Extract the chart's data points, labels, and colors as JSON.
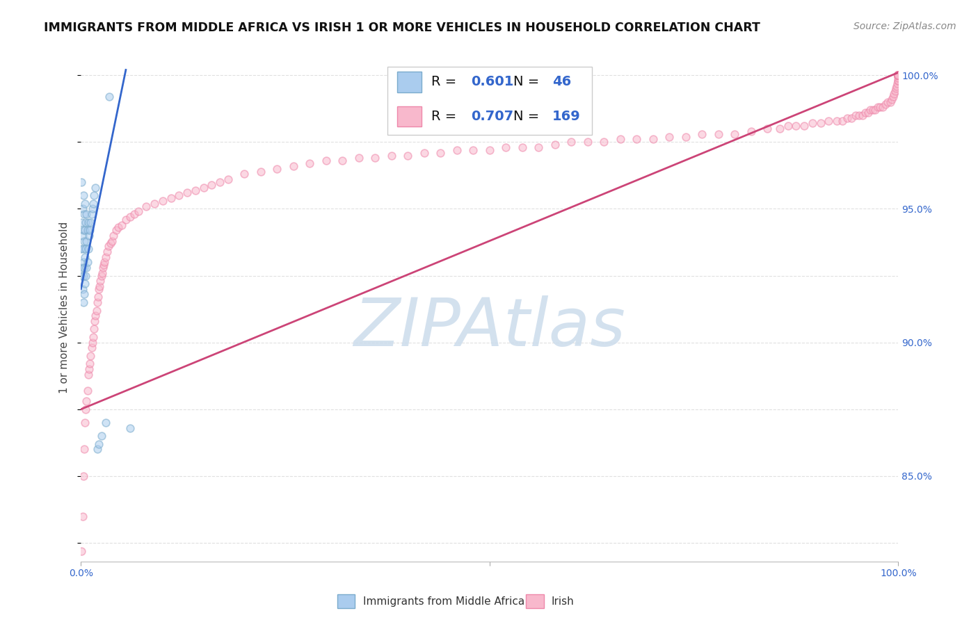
{
  "title": "IMMIGRANTS FROM MIDDLE AFRICA VS IRISH 1 OR MORE VEHICLES IN HOUSEHOLD CORRELATION CHART",
  "source": "Source: ZipAtlas.com",
  "ylabel": "1 or more Vehicles in Household",
  "ytick_labels": [
    "85.0%",
    "90.0%",
    "95.0%",
    "100.0%"
  ],
  "ytick_values": [
    0.85,
    0.9,
    0.95,
    1.0
  ],
  "xmin": 0.0,
  "xmax": 1.0,
  "ymin": 0.818,
  "ymax": 1.008,
  "blue_scatter_x": [
    0.0,
    0.001,
    0.001,
    0.001,
    0.002,
    0.002,
    0.002,
    0.002,
    0.003,
    0.003,
    0.003,
    0.003,
    0.003,
    0.003,
    0.004,
    0.004,
    0.004,
    0.004,
    0.005,
    0.005,
    0.005,
    0.005,
    0.006,
    0.006,
    0.006,
    0.007,
    0.007,
    0.007,
    0.008,
    0.008,
    0.009,
    0.009,
    0.01,
    0.011,
    0.012,
    0.013,
    0.014,
    0.015,
    0.016,
    0.018,
    0.02,
    0.022,
    0.025,
    0.03,
    0.035,
    0.06
  ],
  "blue_scatter_y": [
    0.935,
    0.925,
    0.945,
    0.96,
    0.92,
    0.94,
    0.928,
    0.95,
    0.915,
    0.93,
    0.942,
    0.955,
    0.925,
    0.935,
    0.918,
    0.928,
    0.938,
    0.948,
    0.922,
    0.932,
    0.942,
    0.952,
    0.925,
    0.935,
    0.945,
    0.928,
    0.938,
    0.948,
    0.93,
    0.942,
    0.935,
    0.945,
    0.94,
    0.942,
    0.945,
    0.948,
    0.95,
    0.952,
    0.955,
    0.958,
    0.86,
    0.862,
    0.865,
    0.87,
    0.992,
    0.868
  ],
  "pink_scatter_x": [
    0.001,
    0.002,
    0.003,
    0.004,
    0.005,
    0.006,
    0.007,
    0.008,
    0.009,
    0.01,
    0.011,
    0.012,
    0.013,
    0.014,
    0.015,
    0.016,
    0.017,
    0.018,
    0.019,
    0.02,
    0.021,
    0.022,
    0.023,
    0.024,
    0.025,
    0.026,
    0.027,
    0.028,
    0.029,
    0.03,
    0.032,
    0.034,
    0.036,
    0.038,
    0.04,
    0.043,
    0.046,
    0.05,
    0.055,
    0.06,
    0.065,
    0.07,
    0.08,
    0.09,
    0.1,
    0.11,
    0.12,
    0.13,
    0.14,
    0.15,
    0.16,
    0.17,
    0.18,
    0.2,
    0.22,
    0.24,
    0.26,
    0.28,
    0.3,
    0.32,
    0.34,
    0.36,
    0.38,
    0.4,
    0.42,
    0.44,
    0.46,
    0.48,
    0.5,
    0.52,
    0.54,
    0.56,
    0.58,
    0.6,
    0.62,
    0.64,
    0.66,
    0.68,
    0.7,
    0.72,
    0.74,
    0.76,
    0.78,
    0.8,
    0.82,
    0.84,
    0.855,
    0.865,
    0.875,
    0.885,
    0.895,
    0.905,
    0.915,
    0.925,
    0.932,
    0.938,
    0.943,
    0.948,
    0.952,
    0.956,
    0.96,
    0.963,
    0.966,
    0.969,
    0.972,
    0.975,
    0.978,
    0.981,
    0.984,
    0.987,
    0.99,
    0.992,
    0.994,
    0.995,
    0.996,
    0.997,
    0.998,
    0.999,
    1.0,
    1.0,
    1.0,
    1.0,
    1.0,
    1.0,
    1.0,
    1.0,
    1.0,
    1.0,
    1.0,
    1.0,
    1.0,
    1.0,
    1.0,
    1.0,
    1.0,
    1.0,
    1.0,
    1.0,
    1.0,
    1.0,
    1.0,
    1.0,
    1.0,
    1.0,
    1.0,
    1.0,
    1.0,
    1.0,
    1.0,
    1.0,
    1.0,
    1.0,
    1.0,
    1.0,
    1.0,
    1.0,
    1.0,
    1.0,
    1.0,
    1.0,
    1.0,
    1.0,
    1.0,
    1.0
  ],
  "pink_scatter_y": [
    0.822,
    0.835,
    0.85,
    0.86,
    0.87,
    0.875,
    0.878,
    0.882,
    0.888,
    0.89,
    0.892,
    0.895,
    0.898,
    0.9,
    0.902,
    0.905,
    0.908,
    0.91,
    0.912,
    0.915,
    0.917,
    0.92,
    0.921,
    0.923,
    0.925,
    0.926,
    0.928,
    0.929,
    0.93,
    0.932,
    0.934,
    0.936,
    0.937,
    0.938,
    0.94,
    0.942,
    0.943,
    0.944,
    0.946,
    0.947,
    0.948,
    0.949,
    0.951,
    0.952,
    0.953,
    0.954,
    0.955,
    0.956,
    0.957,
    0.958,
    0.959,
    0.96,
    0.961,
    0.963,
    0.964,
    0.965,
    0.966,
    0.967,
    0.968,
    0.968,
    0.969,
    0.969,
    0.97,
    0.97,
    0.971,
    0.971,
    0.972,
    0.972,
    0.972,
    0.973,
    0.973,
    0.973,
    0.974,
    0.975,
    0.975,
    0.975,
    0.976,
    0.976,
    0.976,
    0.977,
    0.977,
    0.978,
    0.978,
    0.978,
    0.979,
    0.98,
    0.98,
    0.981,
    0.981,
    0.981,
    0.982,
    0.982,
    0.983,
    0.983,
    0.983,
    0.984,
    0.984,
    0.985,
    0.985,
    0.985,
    0.986,
    0.986,
    0.987,
    0.987,
    0.987,
    0.988,
    0.988,
    0.988,
    0.989,
    0.99,
    0.99,
    0.991,
    0.992,
    0.993,
    0.994,
    0.995,
    0.996,
    0.997,
    0.998,
    0.998,
    0.999,
    1.0,
    1.0,
    1.0,
    1.0,
    1.0,
    1.0,
    1.0,
    1.0,
    1.0,
    1.0,
    1.0,
    1.0,
    1.0,
    1.0,
    1.0,
    1.0,
    1.0,
    1.0,
    1.0,
    1.0,
    1.0,
    1.0,
    1.0,
    1.0,
    1.0,
    1.0,
    1.0,
    1.0,
    1.0,
    1.0,
    1.0,
    1.0,
    1.0,
    1.0,
    1.0,
    1.0,
    1.0,
    1.0,
    1.0,
    1.0,
    1.0,
    1.0,
    1.0
  ],
  "blue_line_x": [
    0.0,
    0.055
  ],
  "blue_line_y": [
    0.92,
    1.002
  ],
  "pink_line_x": [
    0.0,
    1.0
  ],
  "pink_line_y": [
    0.875,
    1.001
  ],
  "scatter_size": 60,
  "scatter_alpha": 0.55,
  "scatter_linewidth": 1.2,
  "blue_color": "#aaccee",
  "blue_edge_color": "#7aabcc",
  "pink_color": "#f8b8cc",
  "pink_edge_color": "#ee88aa",
  "blue_line_color": "#3366cc",
  "pink_line_color": "#cc4477",
  "grid_color": "#e0e0e0",
  "grid_linestyle": "--",
  "background_color": "#ffffff",
  "title_fontsize": 12.5,
  "axis_label_fontsize": 11,
  "tick_fontsize": 10,
  "legend_fontsize": 14,
  "source_fontsize": 10,
  "watermark_text": "ZIPAtlas",
  "watermark_color": "#ccdcec",
  "watermark_fontsize": 70,
  "R_blue": "0.601",
  "N_blue": "46",
  "R_pink": "0.707",
  "N_pink": "169",
  "legend_label_blue": "Immigrants from Middle Africa",
  "legend_label_pink": "Irish"
}
